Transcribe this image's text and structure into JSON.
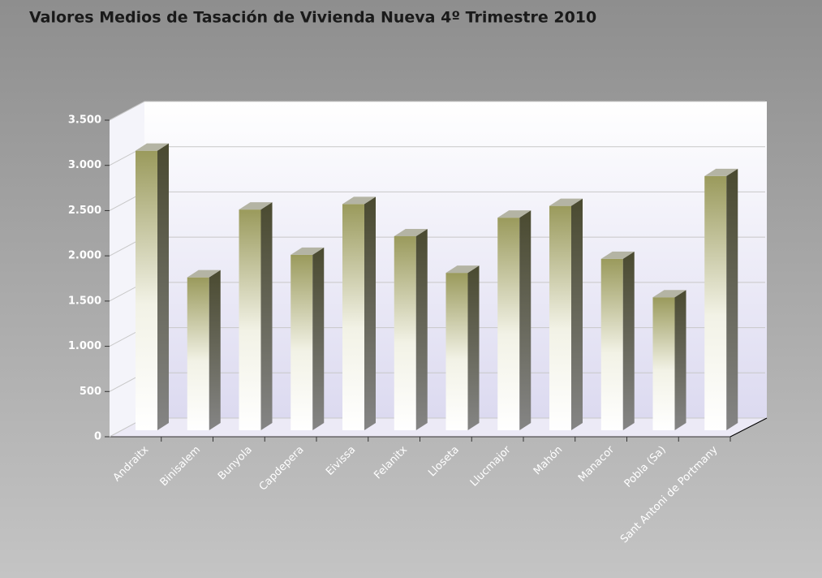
{
  "chart_data": {
    "type": "bar3d",
    "title": "Valores Medios de Tasación de Vivienda Nueva 4º Trimestre 2010",
    "categories": [
      "Andraitx",
      "Binisalem",
      "Bunyola",
      "Capdepera",
      "Eivissa",
      "Felanitx",
      "Lloseta",
      "Llucmajor",
      "Mahón",
      "Manacor",
      "Pobla (Sa)",
      "Sant Antoni de Portmany"
    ],
    "values": [
      3090,
      1690,
      2440,
      1940,
      2500,
      2145,
      1740,
      2350,
      2480,
      1895,
      1470,
      2810
    ],
    "color": "#9a9a5c",
    "ylim": [
      0,
      3500
    ],
    "yticks": [
      0,
      500,
      {
        "value": 1000,
        "label": "1.000"
      },
      {
        "value": 1500,
        "label": "1.500"
      },
      {
        "value": 2000,
        "label": "2.000"
      },
      {
        "value": 2500,
        "label": "2.500"
      },
      {
        "value": 3000,
        "label": "3.000"
      },
      {
        "value": 3500,
        "label": "3.500"
      }
    ],
    "grid": true
  }
}
